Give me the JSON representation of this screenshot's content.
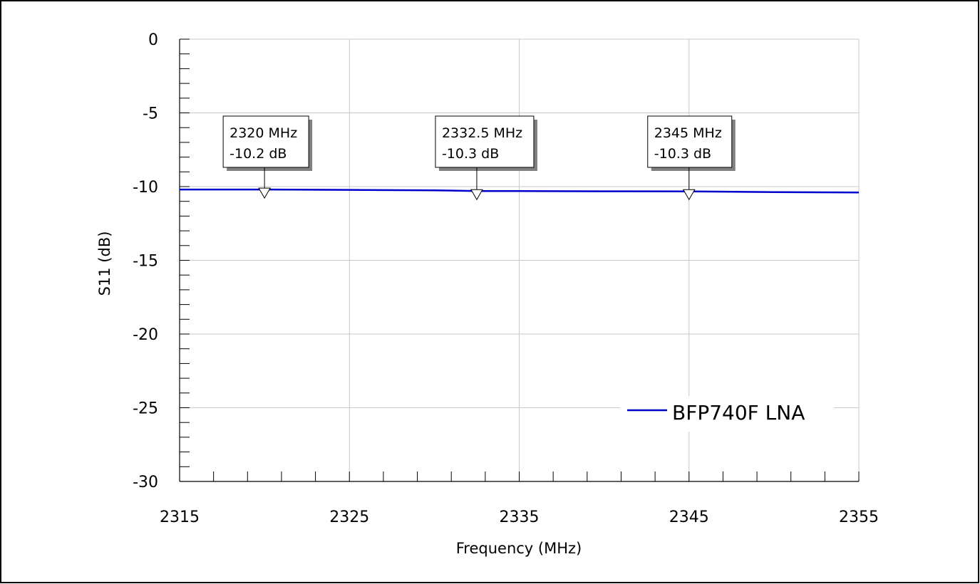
{
  "chart_data": {
    "type": "line",
    "title": "",
    "xlabel": "Frequency (MHz)",
    "ylabel": "S11 (dB)",
    "xlim": [
      2315,
      2355
    ],
    "ylim": [
      -30,
      0
    ],
    "x_ticks": [
      "2315",
      "2325",
      "2335",
      "2345",
      "2355"
    ],
    "y_ticks": [
      "0",
      "-5",
      "-10",
      "-15",
      "-20",
      "-25",
      "-30"
    ],
    "grid": true,
    "legend_position": "bottom-right",
    "series": [
      {
        "name": "BFP740F LNA",
        "color": "#0000cc",
        "x": [
          2315,
          2320,
          2325,
          2330,
          2332.5,
          2335,
          2340,
          2345,
          2350,
          2355
        ],
        "y": [
          -10.2,
          -10.2,
          -10.22,
          -10.25,
          -10.3,
          -10.3,
          -10.32,
          -10.33,
          -10.37,
          -10.4
        ]
      }
    ],
    "markers": [
      {
        "x": 2320,
        "y": -10.2,
        "label_freq": "2320 MHz",
        "label_val": "-10.2 dB"
      },
      {
        "x": 2332.5,
        "y": -10.3,
        "label_freq": "2332.5 MHz",
        "label_val": "-10.3 dB"
      },
      {
        "x": 2345,
        "y": -10.3,
        "label_freq": "2345 MHz",
        "label_val": "-10.3 dB"
      }
    ]
  }
}
